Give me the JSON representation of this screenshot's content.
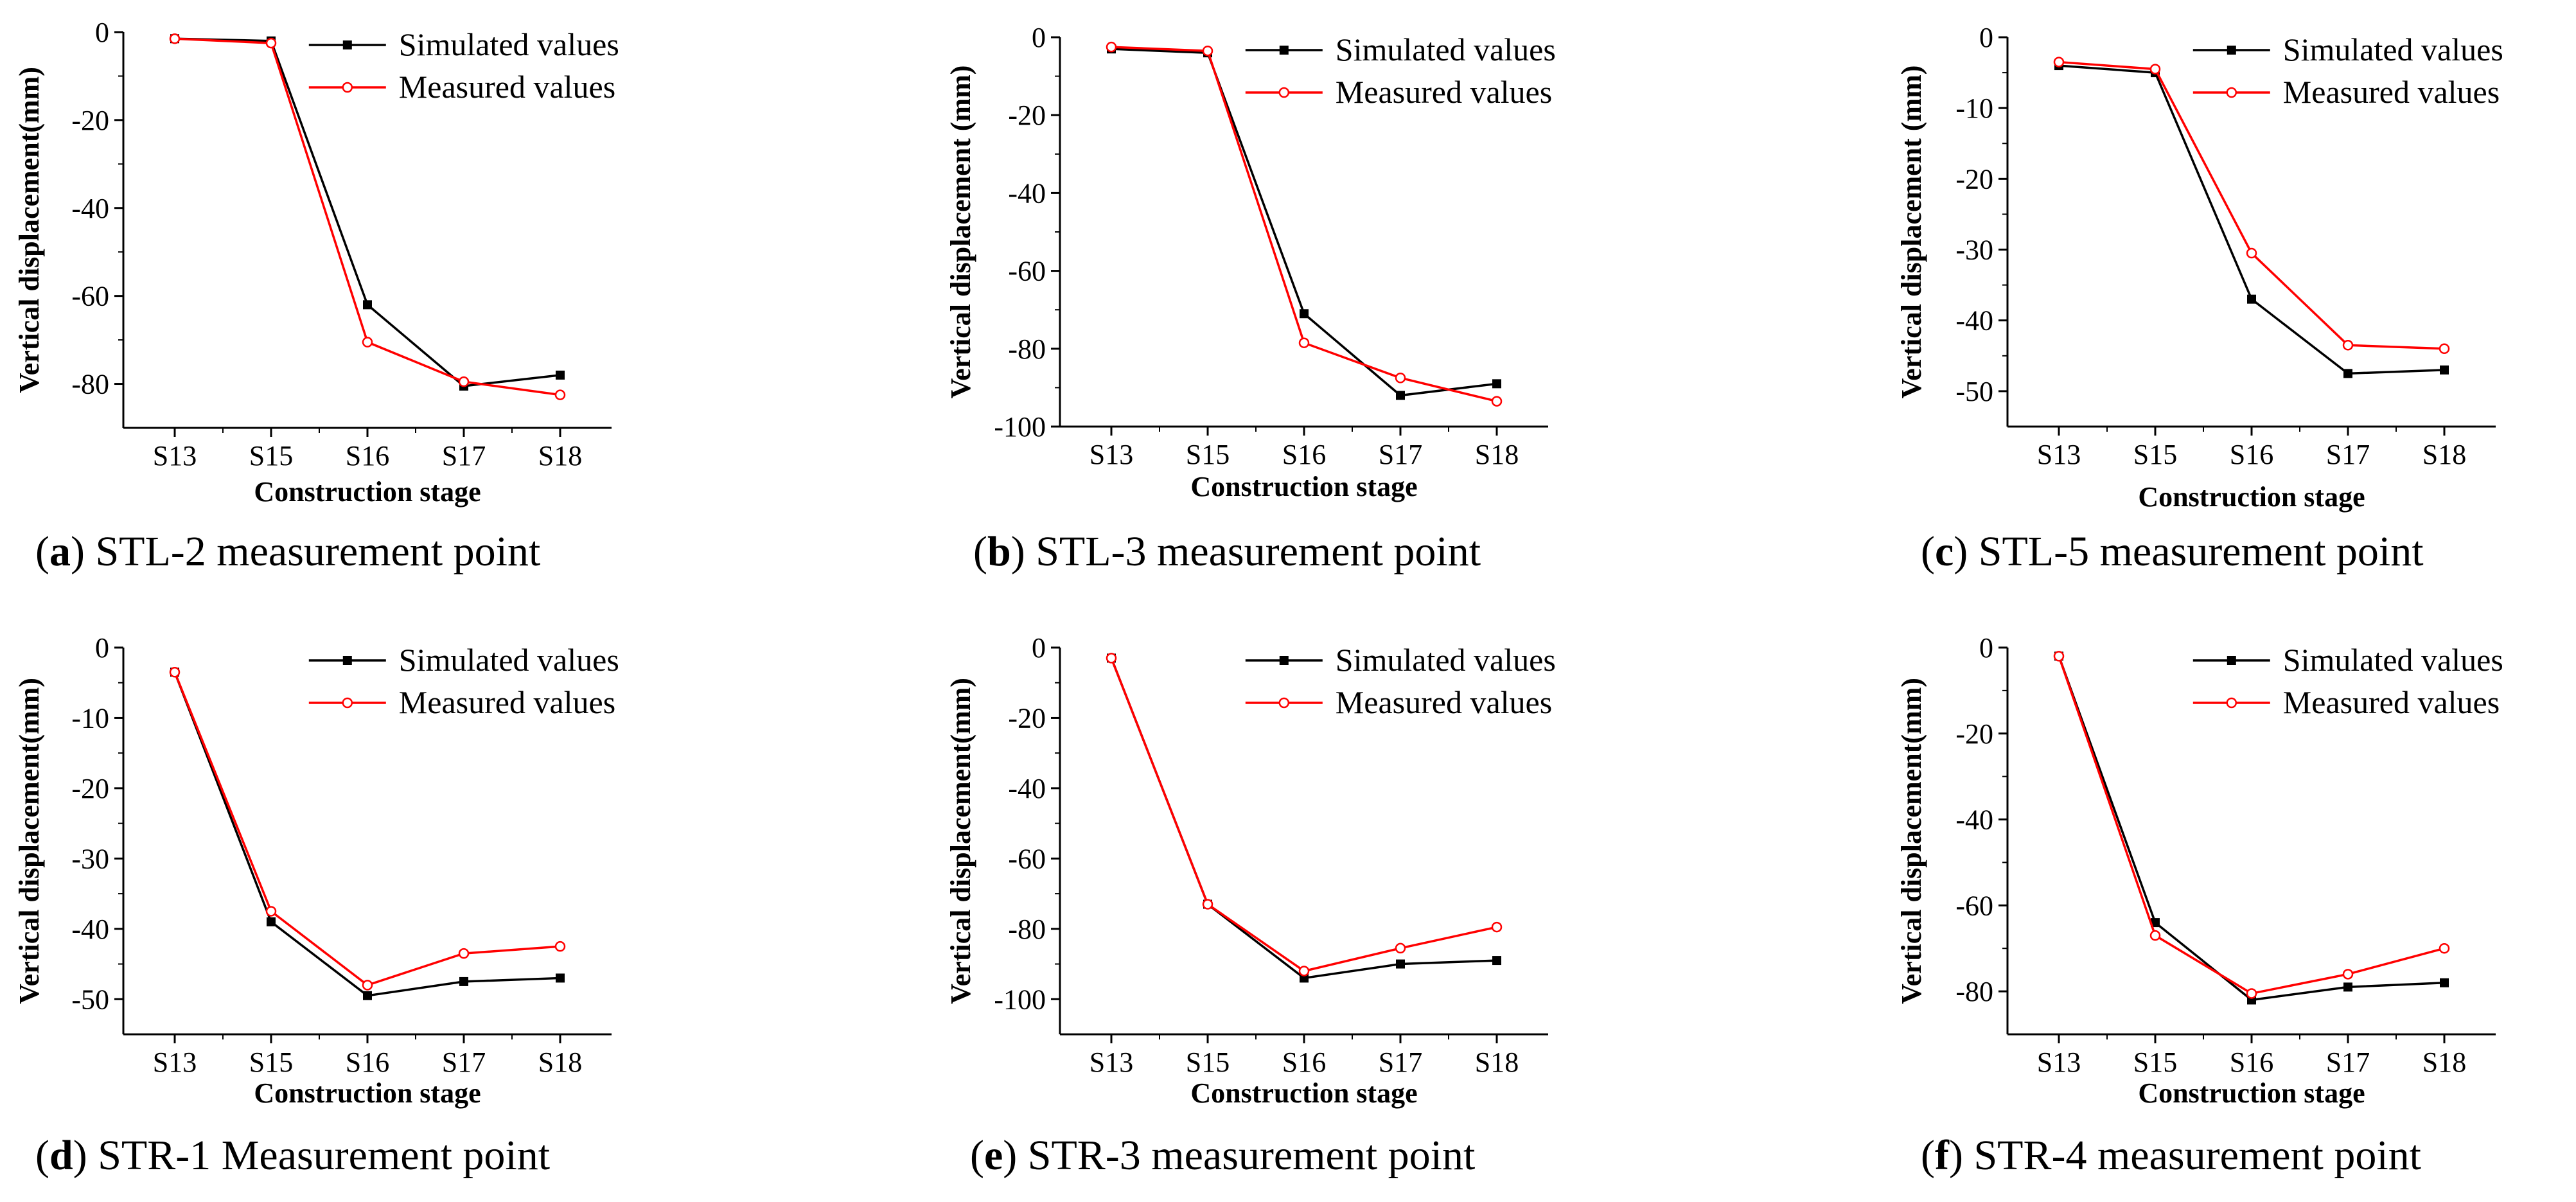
{
  "colors": {
    "simulated": "#000000",
    "measured": "#ff0000"
  },
  "chart_data": [
    {
      "id": "a",
      "type": "line",
      "categories": [
        "S13",
        "S15",
        "S16",
        "S17",
        "S18"
      ],
      "xlabel": "Construction stage",
      "ylabel": "Vertical displacement(mm)",
      "ylim": [
        -90,
        0
      ],
      "yticks": [
        0,
        -20,
        -40,
        -60,
        -80
      ],
      "legend_position": "top-right",
      "series": [
        {
          "name": "Simulated values",
          "values": [
            -1.5,
            -2,
            -62,
            -80.5,
            -78
          ]
        },
        {
          "name": "Measured values",
          "values": [
            -1.5,
            -2.5,
            -70.5,
            -79.5,
            -82.5
          ]
        }
      ],
      "caption": {
        "letter": "a",
        "text": " STL-2 measurement point"
      }
    },
    {
      "id": "b",
      "type": "line",
      "categories": [
        "S13",
        "S15",
        "S16",
        "S17",
        "S18"
      ],
      "xlabel": "Construction stage",
      "ylabel": "Vertical displacement (mm)",
      "ylim": [
        -100,
        0
      ],
      "yticks": [
        0,
        -20,
        -40,
        -60,
        -80,
        -100
      ],
      "legend_position": "top-right",
      "series": [
        {
          "name": "Simulated values",
          "values": [
            -3,
            -4,
            -71,
            -92,
            -89
          ]
        },
        {
          "name": "Measured values",
          "values": [
            -2.5,
            -3.5,
            -78.5,
            -87.5,
            -93.5
          ]
        }
      ],
      "caption": {
        "letter": "b",
        "text": " STL-3 measurement point"
      }
    },
    {
      "id": "c",
      "type": "line",
      "categories": [
        "S13",
        "S15",
        "S16",
        "S17",
        "S18"
      ],
      "xlabel": "Construction stage",
      "ylabel": "Vertical displacement (mm)",
      "ylim": [
        -55,
        0
      ],
      "yticks": [
        0,
        -10,
        -20,
        -30,
        -40,
        -50
      ],
      "legend_position": "top-right",
      "series": [
        {
          "name": "Simulated values",
          "values": [
            -4,
            -5,
            -37,
            -47.5,
            -47
          ]
        },
        {
          "name": "Measured values",
          "values": [
            -3.5,
            -4.5,
            -30.5,
            -43.5,
            -44
          ]
        }
      ],
      "caption": {
        "letter": "c",
        "text": " STL-5 measurement point"
      }
    },
    {
      "id": "d",
      "type": "line",
      "categories": [
        "S13",
        "S15",
        "S16",
        "S17",
        "S18"
      ],
      "xlabel": "Construction stage",
      "ylabel": "Vertical displacement(mm)",
      "ylim": [
        -55,
        0
      ],
      "yticks": [
        0,
        -10,
        -20,
        -30,
        -40,
        -50
      ],
      "legend_position": "top-right",
      "series": [
        {
          "name": "Simulated values",
          "values": [
            -3.5,
            -39,
            -49.5,
            -47.5,
            -47
          ]
        },
        {
          "name": "Measured values",
          "values": [
            -3.5,
            -37.5,
            -48,
            -43.5,
            -42.5
          ]
        }
      ],
      "caption": {
        "letter": "d",
        "text": " STR-1 Measurement point"
      }
    },
    {
      "id": "e",
      "type": "line",
      "categories": [
        "S13",
        "S15",
        "S16",
        "S17",
        "S18"
      ],
      "xlabel": "Construction stage",
      "ylabel": "Vertical displacement(mm)",
      "ylim": [
        -110,
        0
      ],
      "yticks": [
        0,
        -20,
        -40,
        -60,
        -80,
        -100
      ],
      "legend_position": "top-right",
      "series": [
        {
          "name": "Simulated values",
          "values": [
            -3,
            -73,
            -94,
            -90,
            -89
          ]
        },
        {
          "name": "Measured values",
          "values": [
            -3,
            -73,
            -92,
            -85.5,
            -79.5
          ]
        }
      ],
      "caption": {
        "letter": "e",
        "text": " STR-3 measurement point"
      }
    },
    {
      "id": "f",
      "type": "line",
      "categories": [
        "S13",
        "S15",
        "S16",
        "S17",
        "S18"
      ],
      "xlabel": "Construction stage",
      "ylabel": "Vertical displacement(mm)",
      "ylim": [
        -90,
        0
      ],
      "yticks": [
        0,
        -20,
        -40,
        -60,
        -80
      ],
      "legend_position": "top-right",
      "series": [
        {
          "name": "Simulated values",
          "values": [
            -2,
            -64,
            -82,
            -79,
            -78
          ]
        },
        {
          "name": "Measured values",
          "values": [
            -2,
            -67,
            -80.5,
            -76,
            -70
          ]
        }
      ],
      "caption": {
        "letter": "f",
        "text": " STR-4 measurement point"
      }
    }
  ]
}
